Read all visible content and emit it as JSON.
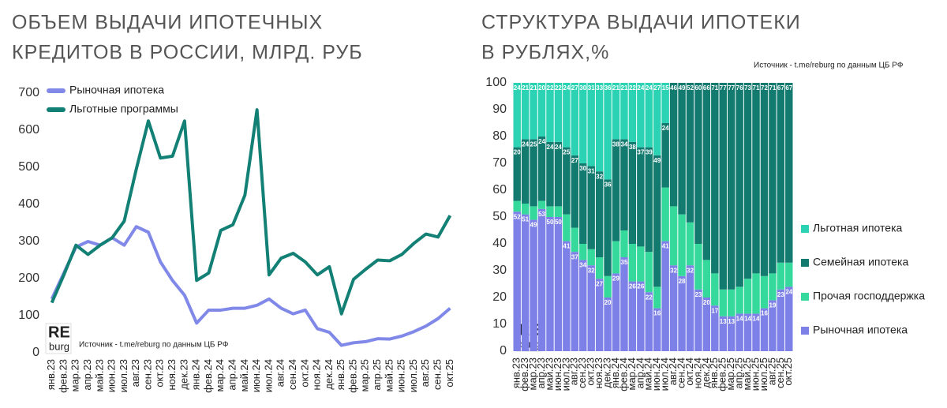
{
  "chart_data": [
    {
      "type": "line",
      "title": [
        "ОБЪЕМ ВЫДАЧИ ИПОТЕЧНЫХ",
        "КРЕДИТОВ В РОССИИ, МЛРД. РУБ"
      ],
      "source": "Источник  - t.me/reburg по данным  ЦБ РФ",
      "watermark": {
        "top": "RE",
        "bottom": "burg"
      },
      "categories": [
        "янв.23",
        "фев.23",
        "мар.23",
        "апр.23",
        "май.23",
        "июн.23",
        "июл.23",
        "авг.23",
        "сен.23",
        "окт.23",
        "ноя.23",
        "дек.23",
        "янв.24",
        "фев.24",
        "мар.24",
        "апр.24",
        "май.24",
        "июн.24",
        "июл.24",
        "авг.24",
        "сен.24",
        "окт.24",
        "ноя.24",
        "дек.24",
        "янв.25",
        "фев.25",
        "мар.25",
        "апр.25",
        "май.25",
        "июн.25",
        "июл.25",
        "авг.25",
        "сен.25",
        "окт.25"
      ],
      "series": [
        {
          "name": "Рыночная ипотека",
          "color": "#8088e8",
          "values": [
            145,
            215,
            285,
            300,
            290,
            310,
            290,
            340,
            325,
            245,
            195,
            155,
            80,
            115,
            115,
            120,
            120,
            128,
            145,
            120,
            105,
            115,
            65,
            55,
            20,
            27,
            30,
            38,
            37,
            45,
            57,
            72,
            92,
            120
          ]
        },
        {
          "name": "Льготные программы",
          "color": "#138075",
          "values": [
            135,
            210,
            290,
            265,
            290,
            310,
            355,
            495,
            625,
            525,
            530,
            625,
            195,
            215,
            330,
            345,
            425,
            655,
            210,
            255,
            268,
            245,
            210,
            232,
            105,
            198,
            225,
            250,
            248,
            265,
            295,
            320,
            312,
            370
          ]
        }
      ],
      "ylim": [
        0,
        700
      ],
      "yticks": [
        0,
        100,
        200,
        300,
        400,
        500,
        600,
        700
      ],
      "grid": false,
      "legend": "top-left"
    },
    {
      "type": "stacked_bar",
      "title": [
        "СТРУКТУРА ВЫДАЧИ ИПОТЕКИ",
        "В РУБЛЯХ,%"
      ],
      "source": "Источник  - t.me/reburg по данным  ЦБ РФ",
      "watermark": {
        "top": "RE",
        "bottom": "burg"
      },
      "categories": [
        "янв.23",
        "фев.23",
        "мар.23",
        "апр.23",
        "май.23",
        "июн.23",
        "июл.23",
        "авг.23",
        "сен.23",
        "окт.23",
        "ноя.23",
        "дек.23",
        "янв.24",
        "фев.24",
        "мар.24",
        "апр.24",
        "май.24",
        "июн.24",
        "июл.24",
        "авг.24",
        "сен.24",
        "окт.24",
        "ноя.24",
        "дек.24",
        "янв.25",
        "фев.25",
        "мар.25",
        "апр.25",
        "май.25",
        "июн.25",
        "июл.25",
        "авг.25",
        "сен.25",
        "окт.25"
      ],
      "series": [
        {
          "name": "Рыночная ипотека",
          "color": "#7d80e6",
          "data_labels": true,
          "values": [
            52,
            51,
            49,
            53,
            50,
            50,
            41,
            37,
            34,
            32,
            27,
            20,
            29,
            35,
            26,
            26,
            22,
            16,
            41,
            32,
            28,
            32,
            23,
            20,
            17,
            13,
            13,
            14,
            14,
            14,
            16,
            19,
            23,
            24
          ]
        },
        {
          "name": "Прочая господдержка",
          "color": "#36d99c",
          "data_labels": false,
          "values": [
            4,
            4,
            5,
            3,
            4,
            4,
            10,
            9,
            6,
            6,
            8,
            8,
            12,
            10,
            14,
            13,
            15,
            8,
            20,
            22,
            23,
            16,
            17,
            14,
            12,
            10,
            10,
            10,
            13,
            15,
            12,
            10,
            10,
            9
          ]
        },
        {
          "name": "Семейная ипотека",
          "color": "#137a70",
          "data_labels": true,
          "values": [
            20,
            24,
            25,
            24,
            24,
            24,
            25,
            27,
            30,
            31,
            32,
            36,
            38,
            34,
            38,
            37,
            39,
            49,
            24,
            46,
            49,
            52,
            60,
            66,
            71,
            77,
            77,
            76,
            73,
            71,
            72,
            71,
            67,
            67
          ]
        },
        {
          "name": "Льготная ипотека",
          "color": "#2bd3b4",
          "data_labels": true,
          "values": [
            24,
            21,
            21,
            20,
            22,
            22,
            24,
            27,
            30,
            31,
            33,
            36,
            21,
            21,
            22,
            24,
            24,
            27,
            15,
            null,
            null,
            null,
            null,
            null,
            null,
            null,
            null,
            null,
            null,
            null,
            null,
            null,
            null,
            null
          ]
        }
      ],
      "ylim": [
        0,
        100
      ],
      "yticks": [
        0,
        10,
        20,
        30,
        40,
        50,
        60,
        70,
        80,
        90,
        100
      ],
      "grid": false,
      "legend": "right"
    }
  ]
}
